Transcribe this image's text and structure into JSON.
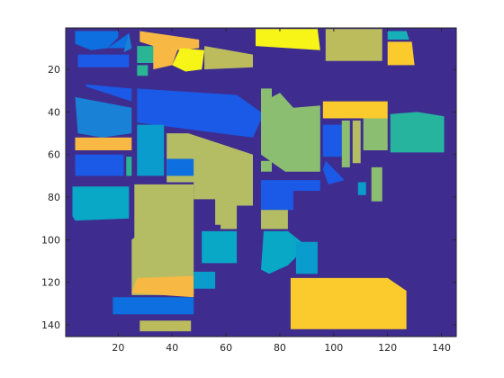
{
  "chart_data": {
    "type": "heatmap",
    "title": "",
    "xlabel": "",
    "ylabel": "",
    "xlim": [
      0.5,
      145.5
    ],
    "ylim": [
      0.5,
      145.5
    ],
    "y_reversed": true,
    "grid": false,
    "legend": "none",
    "x_ticks": [
      20,
      40,
      60,
      80,
      100,
      120,
      140
    ],
    "y_ticks": [
      20,
      40,
      60,
      80,
      100,
      120,
      140
    ],
    "x_tick_labels": [
      "20",
      "40",
      "60",
      "80",
      "100",
      "120",
      "140"
    ],
    "y_tick_labels": [
      "20",
      "40",
      "60",
      "80",
      "100",
      "120",
      "140"
    ],
    "background_class": 0,
    "colormap": {
      "0": "#3e2d8f",
      "1": "#0d6fe0",
      "2": "#1a5ae6",
      "3": "#1982d6",
      "4": "#0a9ccc",
      "5": "#08a8c6",
      "6": "#16b0b8",
      "7": "#27b49f",
      "8": "#2ab695",
      "9": "#8cbe72",
      "10": "#b4bd64",
      "11": "#bcbc5c",
      "12": "#d2ba4a",
      "13": "#f7b943",
      "14": "#fbcb2e",
      "15": "#f0de22",
      "16": "#f7f518"
    },
    "regions": [
      {
        "class": 1,
        "poly": [
          [
            4,
            2
          ],
          [
            20,
            2
          ],
          [
            20,
            5
          ],
          [
            16,
            10
          ],
          [
            10,
            11
          ],
          [
            4,
            8
          ]
        ]
      },
      {
        "class": 1,
        "poly": [
          [
            16,
            10
          ],
          [
            24,
            3
          ],
          [
            24,
            10
          ]
        ]
      },
      {
        "class": 3,
        "poly": [
          [
            24,
            3
          ],
          [
            25,
            10
          ],
          [
            22,
            12
          ]
        ]
      },
      {
        "class": 2,
        "poly": [
          [
            5,
            13
          ],
          [
            24,
            13
          ],
          [
            24,
            19
          ],
          [
            5,
            19
          ]
        ]
      },
      {
        "class": 8,
        "poly": [
          [
            27,
            9
          ],
          [
            34,
            9
          ],
          [
            34,
            17
          ],
          [
            27,
            17
          ]
        ]
      },
      {
        "class": 8,
        "poly": [
          [
            27,
            18
          ],
          [
            31,
            18
          ],
          [
            31,
            23
          ],
          [
            27,
            23
          ]
        ]
      },
      {
        "class": 13,
        "poly": [
          [
            28,
            2
          ],
          [
            50,
            6
          ],
          [
            50,
            10
          ],
          [
            42,
            11
          ],
          [
            40,
            18
          ],
          [
            33,
            20
          ],
          [
            33,
            9
          ],
          [
            28,
            7
          ]
        ]
      },
      {
        "class": 16,
        "poly": [
          [
            43,
            10
          ],
          [
            52,
            11
          ],
          [
            51,
            20
          ],
          [
            45,
            21
          ],
          [
            40,
            18
          ]
        ]
      },
      {
        "class": 11,
        "poly": [
          [
            52,
            9
          ],
          [
            70,
            13
          ],
          [
            70,
            19
          ],
          [
            52,
            20
          ]
        ]
      },
      {
        "class": 16,
        "poly": [
          [
            71,
            1
          ],
          [
            94,
            1
          ],
          [
            95,
            11
          ],
          [
            71,
            9
          ]
        ]
      },
      {
        "class": 11,
        "poly": [
          [
            97,
            1
          ],
          [
            118,
            1
          ],
          [
            118,
            16
          ],
          [
            97,
            16
          ]
        ]
      },
      {
        "class": 14,
        "poly": [
          [
            120,
            7
          ],
          [
            129,
            7
          ],
          [
            130,
            18
          ],
          [
            120,
            18
          ]
        ]
      },
      {
        "class": 6,
        "poly": [
          [
            120,
            2
          ],
          [
            127,
            2
          ],
          [
            128,
            6
          ],
          [
            120,
            6
          ]
        ]
      },
      {
        "class": 3,
        "poly": [
          [
            4,
            33
          ],
          [
            25,
            38
          ],
          [
            25,
            50
          ],
          [
            14,
            52
          ],
          [
            5,
            50
          ]
        ]
      },
      {
        "class": 2,
        "poly": [
          [
            8,
            28
          ],
          [
            25,
            35
          ],
          [
            25,
            29
          ],
          [
            8,
            27
          ]
        ]
      },
      {
        "class": 2,
        "poly": [
          [
            27,
            29
          ],
          [
            64,
            32
          ],
          [
            74,
            41
          ],
          [
            70,
            52
          ],
          [
            27,
            45
          ]
        ]
      },
      {
        "class": 13,
        "poly": [
          [
            4,
            52
          ],
          [
            25,
            52
          ],
          [
            25,
            58
          ],
          [
            4,
            58
          ]
        ]
      },
      {
        "class": 2,
        "poly": [
          [
            4,
            60
          ],
          [
            22,
            60
          ],
          [
            22,
            70
          ],
          [
            4,
            70
          ]
        ]
      },
      {
        "class": 8,
        "poly": [
          [
            23,
            61
          ],
          [
            25,
            61
          ],
          [
            25,
            70
          ],
          [
            23,
            70
          ]
        ]
      },
      {
        "class": 4,
        "poly": [
          [
            27,
            46
          ],
          [
            37,
            46
          ],
          [
            37,
            70
          ],
          [
            27,
            70
          ]
        ]
      },
      {
        "class": 10,
        "poly": [
          [
            38,
            50
          ],
          [
            46,
            50
          ],
          [
            70,
            60
          ],
          [
            70,
            84
          ],
          [
            64,
            84
          ],
          [
            64,
            95
          ],
          [
            58,
            95
          ],
          [
            58,
            93
          ],
          [
            56,
            93
          ],
          [
            56,
            81
          ],
          [
            48,
            81
          ],
          [
            48,
            73
          ],
          [
            38,
            73
          ]
        ]
      },
      {
        "class": 1,
        "poly": [
          [
            38,
            62
          ],
          [
            48,
            62
          ],
          [
            48,
            70
          ],
          [
            38,
            70
          ]
        ]
      },
      {
        "class": 10,
        "poly": [
          [
            26,
            74
          ],
          [
            48,
            74
          ],
          [
            48,
            126
          ],
          [
            25,
            126
          ],
          [
            25,
            100
          ],
          [
            26,
            99
          ]
        ]
      },
      {
        "class": 9,
        "poly": [
          [
            73,
            29
          ],
          [
            77,
            29
          ],
          [
            77,
            33
          ],
          [
            80,
            31
          ],
          [
            85,
            38
          ],
          [
            95,
            37
          ],
          [
            95,
            68
          ],
          [
            82,
            68
          ],
          [
            73,
            60
          ]
        ]
      },
      {
        "class": 9,
        "poly": [
          [
            73,
            63
          ],
          [
            77,
            63
          ],
          [
            77,
            68
          ],
          [
            73,
            68
          ]
        ]
      },
      {
        "class": 2,
        "poly": [
          [
            73,
            72
          ],
          [
            95,
            72
          ],
          [
            95,
            77
          ],
          [
            85,
            77
          ],
          [
            85,
            86
          ],
          [
            73,
            86
          ]
        ]
      },
      {
        "class": 10,
        "poly": [
          [
            73,
            86
          ],
          [
            83,
            86
          ],
          [
            83,
            95
          ],
          [
            73,
            95
          ]
        ]
      },
      {
        "class": 14,
        "poly": [
          [
            96,
            35
          ],
          [
            120,
            35
          ],
          [
            120,
            43
          ],
          [
            96,
            43
          ]
        ]
      },
      {
        "class": 2,
        "poly": [
          [
            96,
            46
          ],
          [
            103,
            46
          ],
          [
            103,
            61
          ],
          [
            96,
            61
          ]
        ]
      },
      {
        "class": 9,
        "poly": [
          [
            103,
            44
          ],
          [
            106,
            44
          ],
          [
            106,
            66
          ],
          [
            103,
            66
          ]
        ]
      },
      {
        "class": 10,
        "poly": [
          [
            107,
            44
          ],
          [
            110,
            44
          ],
          [
            110,
            64
          ],
          [
            107,
            64
          ]
        ]
      },
      {
        "class": 9,
        "poly": [
          [
            111,
            43
          ],
          [
            120,
            43
          ],
          [
            120,
            58
          ],
          [
            111,
            58
          ]
        ]
      },
      {
        "class": 2,
        "poly": [
          [
            97,
            63
          ],
          [
            104,
            72
          ],
          [
            98,
            74
          ],
          [
            96,
            67
          ]
        ]
      },
      {
        "class": 7,
        "poly": [
          [
            121,
            41
          ],
          [
            131,
            40
          ],
          [
            141,
            42
          ],
          [
            141,
            59
          ],
          [
            121,
            59
          ]
        ]
      },
      {
        "class": 4,
        "poly": [
          [
            109,
            73
          ],
          [
            112,
            73
          ],
          [
            112,
            79
          ],
          [
            109,
            79
          ]
        ]
      },
      {
        "class": 9,
        "poly": [
          [
            114,
            66
          ],
          [
            118,
            66
          ],
          [
            118,
            82
          ],
          [
            114,
            82
          ]
        ]
      },
      {
        "class": 5,
        "poly": [
          [
            3,
            75
          ],
          [
            24,
            75
          ],
          [
            24,
            90
          ],
          [
            4,
            91
          ],
          [
            3,
            89
          ]
        ]
      },
      {
        "class": 5,
        "poly": [
          [
            51,
            96
          ],
          [
            64,
            96
          ],
          [
            64,
            111
          ],
          [
            51,
            111
          ]
        ]
      },
      {
        "class": 5,
        "poly": [
          [
            74,
            96
          ],
          [
            83,
            96
          ],
          [
            90,
            103
          ],
          [
            83,
            112
          ],
          [
            76,
            116
          ],
          [
            73,
            114
          ]
        ]
      },
      {
        "class": 4,
        "poly": [
          [
            86,
            101
          ],
          [
            94,
            101
          ],
          [
            94,
            116
          ],
          [
            86,
            116
          ]
        ]
      },
      {
        "class": 13,
        "poly": [
          [
            25,
            125
          ],
          [
            27,
            118
          ],
          [
            48,
            117
          ],
          [
            48,
            127
          ]
        ]
      },
      {
        "class": 4,
        "poly": [
          [
            48,
            115
          ],
          [
            56,
            115
          ],
          [
            56,
            123
          ],
          [
            48,
            123
          ]
        ]
      },
      {
        "class": 1,
        "poly": [
          [
            18,
            127
          ],
          [
            48,
            127
          ],
          [
            48,
            135
          ],
          [
            18,
            135
          ]
        ]
      },
      {
        "class": 11,
        "poly": [
          [
            28,
            138
          ],
          [
            47,
            138
          ],
          [
            47,
            143
          ],
          [
            28,
            143
          ]
        ]
      },
      {
        "class": 14,
        "poly": [
          [
            84,
            118
          ],
          [
            120,
            118
          ],
          [
            127,
            124
          ],
          [
            127,
            142
          ],
          [
            84,
            142
          ],
          [
            84,
            136
          ]
        ]
      }
    ]
  }
}
